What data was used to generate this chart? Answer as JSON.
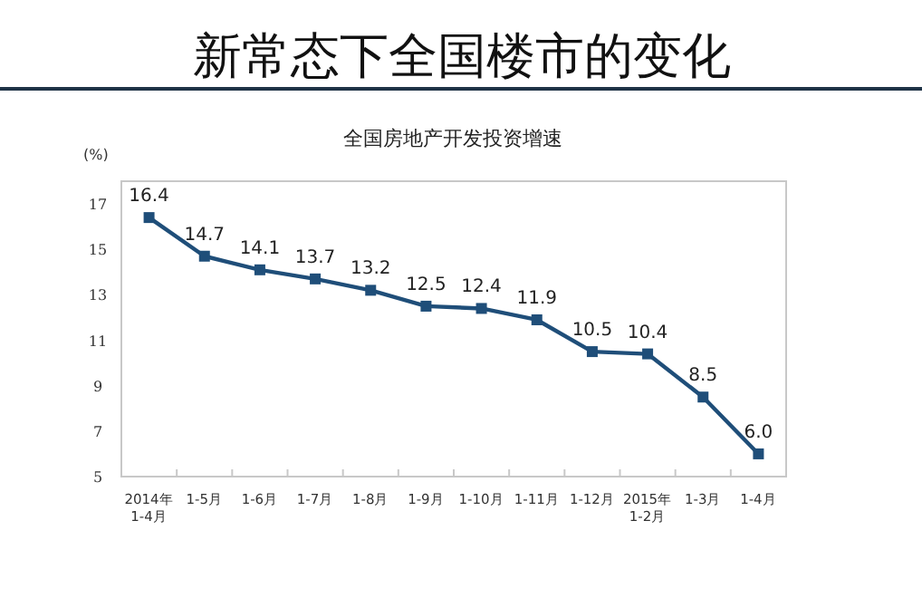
{
  "chart_data": {
    "type": "line",
    "title": "新常态下全国楼市的变化",
    "subtitle": "全国房地产开发投资增速",
    "ylabel": "(%)",
    "categories": [
      "2014年\n1-4月",
      "1-5月",
      "1-6月",
      "1-7月",
      "1-8月",
      "1-9月",
      "1-10月",
      "1-11月",
      "1-12月",
      "2015年\n1-2月",
      "1-3月",
      "1-4月"
    ],
    "series": [
      {
        "color": "#1f4e79",
        "values": [
          16.4,
          14.7,
          14.1,
          13.7,
          13.2,
          12.5,
          12.4,
          11.9,
          10.5,
          10.4,
          8.5,
          6.0
        ],
        "value_labels": [
          "16.4",
          "14.7",
          "14.1",
          "13.7",
          "13.2",
          "12.5",
          "12.4",
          "11.9",
          "10.5",
          "10.4",
          "8.5",
          "6.0"
        ]
      }
    ],
    "ylim": [
      5,
      18
    ],
    "yticks": [
      5,
      7,
      9,
      11,
      13,
      15,
      17
    ],
    "marker": "square",
    "line_style": "solid",
    "grid": false
  }
}
